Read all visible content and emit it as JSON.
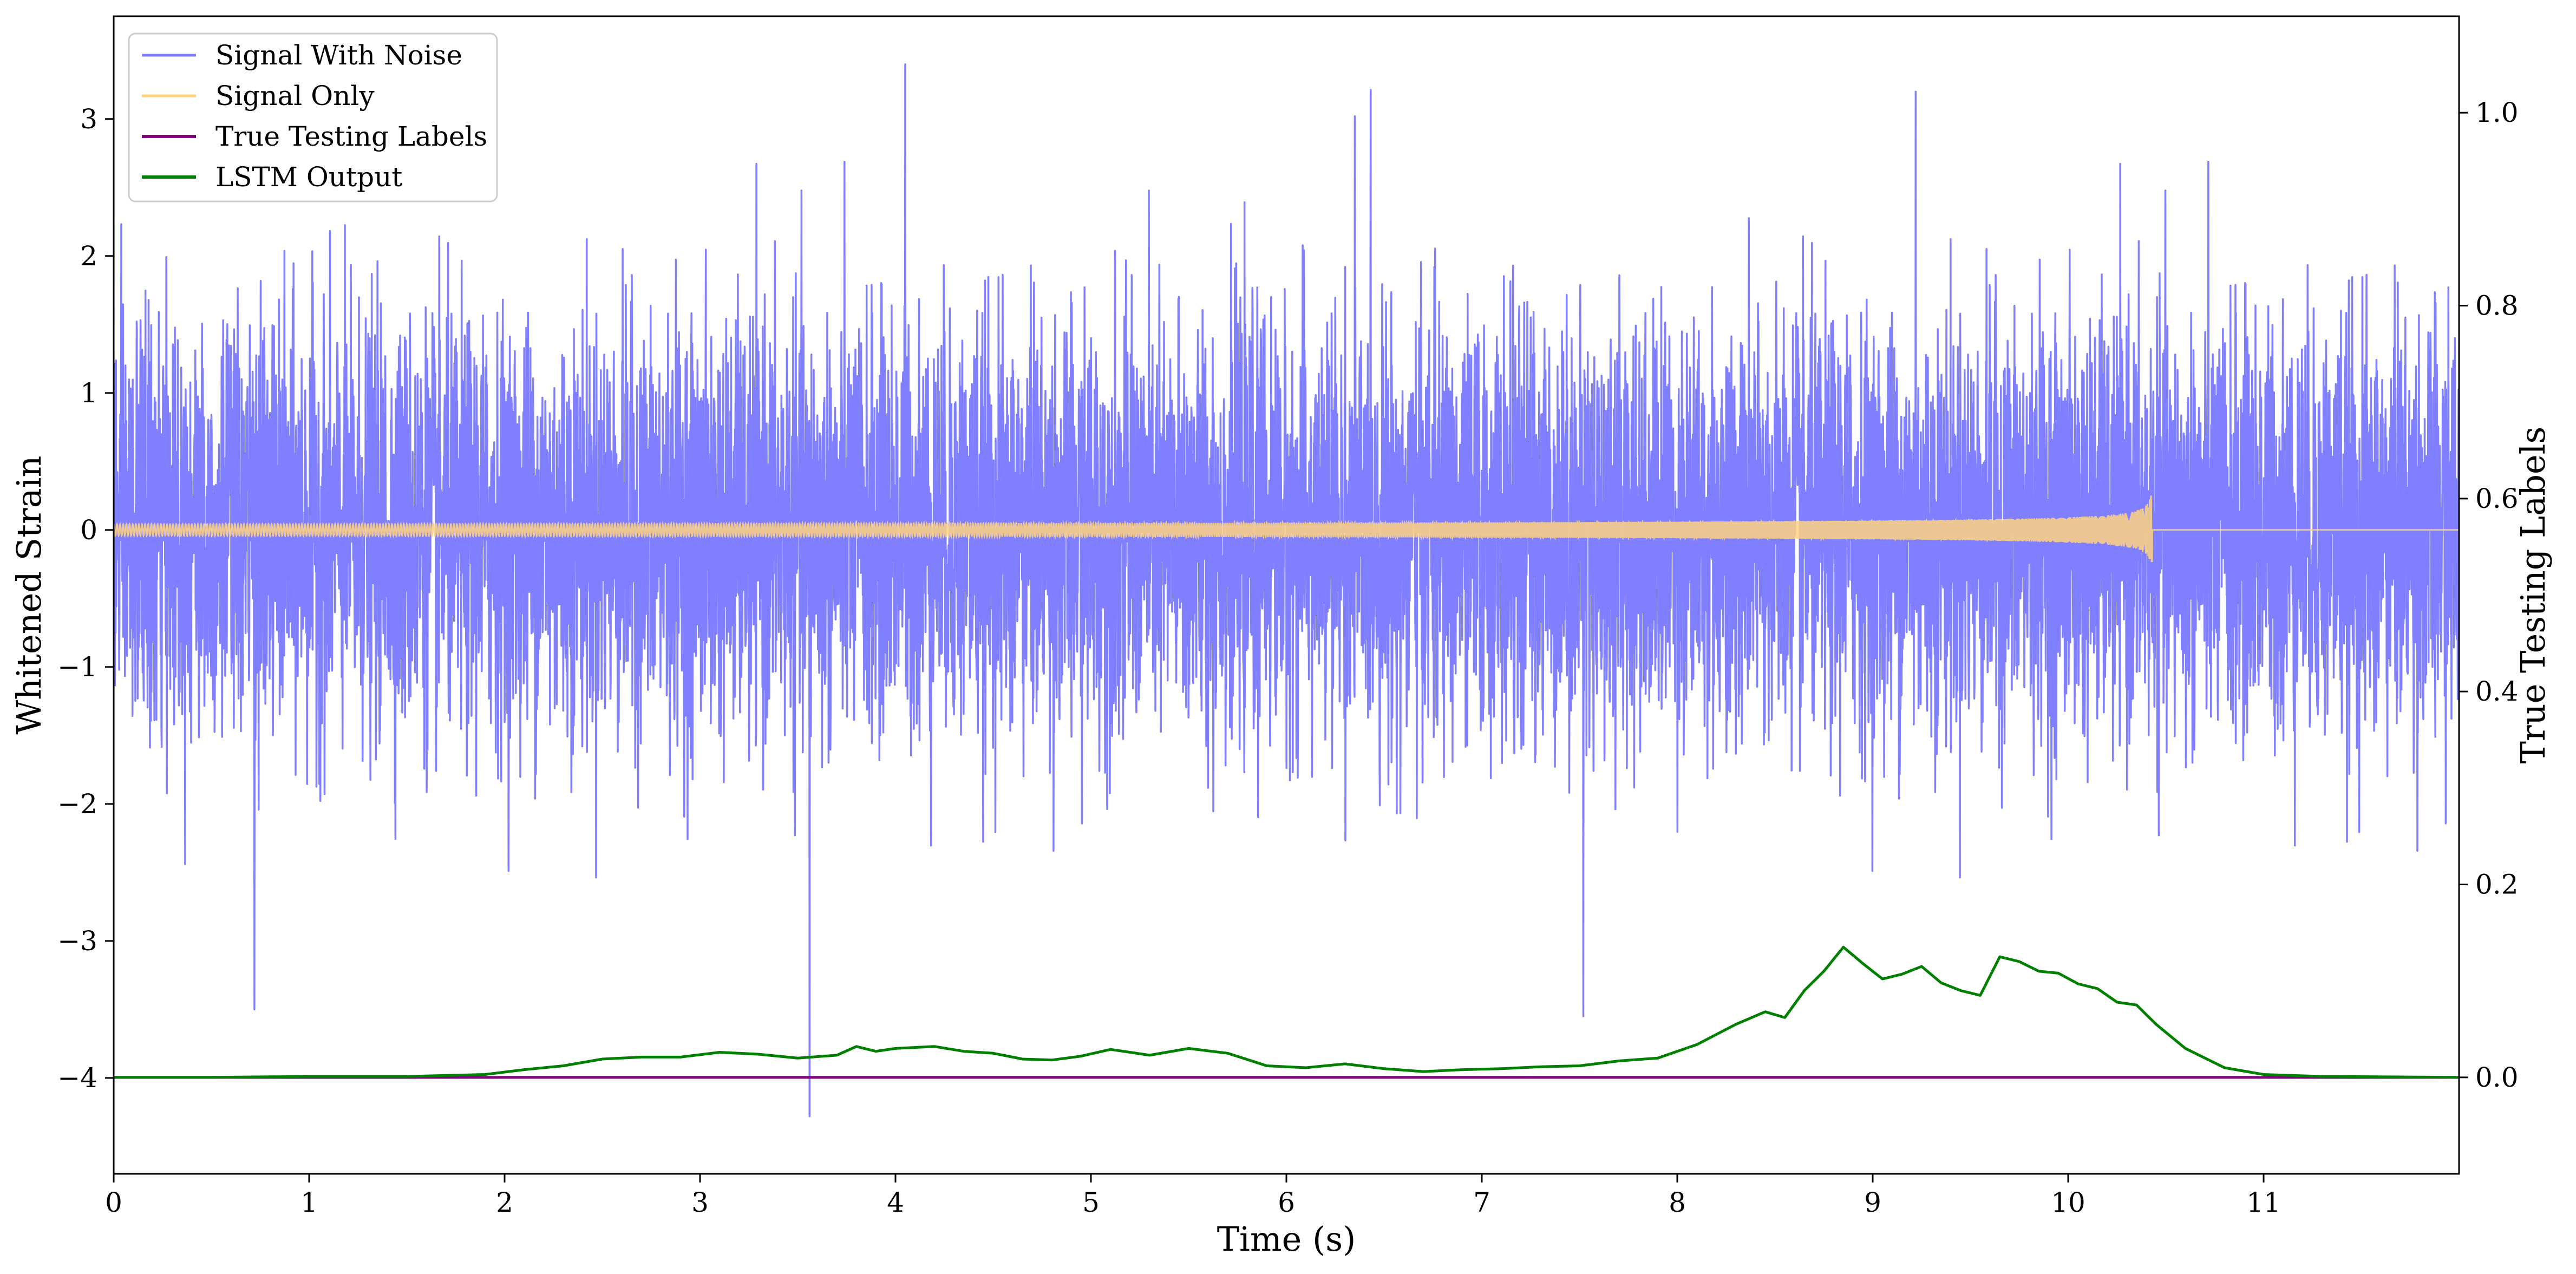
{
  "chart_data": {
    "type": "line",
    "xlabel": "Time (s)",
    "ylabel_left": "Whitened Strain",
    "ylabel_right": "True Testing Labels",
    "xlim": [
      0,
      12
    ],
    "ylim_left": [
      -4.7,
      3.75
    ],
    "ylim_right": [
      -0.1,
      1.1
    ],
    "x_ticks": [
      "0",
      "1",
      "2",
      "3",
      "4",
      "5",
      "6",
      "7",
      "8",
      "9",
      "10",
      "11"
    ],
    "y_left_ticks": [
      "−4",
      "−3",
      "−2",
      "−1",
      "0",
      "1",
      "2",
      "3"
    ],
    "y_right_ticks": [
      "0.0",
      "0.2",
      "0.4",
      "0.6",
      "0.8",
      "1.0"
    ],
    "grid": false,
    "legend": {
      "placement": "top-left",
      "entries": [
        {
          "label": "Signal With Noise",
          "color": "#7f7fff"
        },
        {
          "label": "Signal Only",
          "color": "#ffd280"
        },
        {
          "label": "True Testing Labels",
          "color": "#800080"
        },
        {
          "label": "LSTM Output",
          "color": "#008000"
        }
      ]
    },
    "series": [
      {
        "name": "Signal With Noise",
        "axis": "left",
        "color": "#7f7fff",
        "description_points": "dense Gaussian-like noise, roughly ±1.5 typical amplitude",
        "noise_std": 0.75,
        "notable_spikes": [
          {
            "x": 3.56,
            "y": -4.28
          },
          {
            "x": 4.05,
            "y": 3.4
          },
          {
            "x": 9.22,
            "y": 3.2
          },
          {
            "x": 0.72,
            "y": -3.5
          },
          {
            "x": 6.35,
            "y": 3.02
          },
          {
            "x": 7.52,
            "y": -3.55
          }
        ]
      },
      {
        "name": "Signal Only",
        "axis": "left",
        "color": "#ffd280",
        "chirp_end": 10.43,
        "amplitude_at_end": 0.3
      },
      {
        "name": "True Testing Labels",
        "axis": "right",
        "color": "#800080",
        "x": [
          0,
          12
        ],
        "y": [
          0.0,
          0.0
        ]
      },
      {
        "name": "LSTM Output",
        "axis": "right",
        "color": "#008000",
        "x": [
          0,
          0.5,
          1.0,
          1.5,
          1.9,
          2.1,
          2.3,
          2.5,
          2.7,
          2.9,
          3.1,
          3.3,
          3.5,
          3.7,
          3.8,
          3.9,
          4.0,
          4.2,
          4.35,
          4.5,
          4.65,
          4.8,
          4.95,
          5.1,
          5.3,
          5.5,
          5.7,
          5.9,
          6.1,
          6.3,
          6.5,
          6.7,
          6.9,
          7.1,
          7.3,
          7.5,
          7.7,
          7.9,
          8.1,
          8.3,
          8.45,
          8.55,
          8.65,
          8.75,
          8.85,
          8.95,
          9.05,
          9.15,
          9.25,
          9.35,
          9.45,
          9.55,
          9.65,
          9.75,
          9.85,
          9.95,
          10.05,
          10.15,
          10.25,
          10.35,
          10.45,
          10.6,
          10.8,
          11.0,
          11.3,
          12.0
        ],
        "y": [
          0.0,
          0.0,
          0.001,
          0.001,
          0.003,
          0.008,
          0.012,
          0.019,
          0.021,
          0.021,
          0.026,
          0.024,
          0.02,
          0.023,
          0.032,
          0.027,
          0.03,
          0.032,
          0.027,
          0.025,
          0.019,
          0.018,
          0.022,
          0.029,
          0.023,
          0.03,
          0.025,
          0.012,
          0.01,
          0.014,
          0.009,
          0.006,
          0.008,
          0.009,
          0.011,
          0.012,
          0.017,
          0.02,
          0.034,
          0.055,
          0.068,
          0.062,
          0.09,
          0.11,
          0.135,
          0.118,
          0.102,
          0.107,
          0.115,
          0.098,
          0.09,
          0.085,
          0.125,
          0.12,
          0.11,
          0.108,
          0.097,
          0.092,
          0.078,
          0.075,
          0.055,
          0.03,
          0.01,
          0.003,
          0.001,
          0.0
        ]
      }
    ]
  }
}
